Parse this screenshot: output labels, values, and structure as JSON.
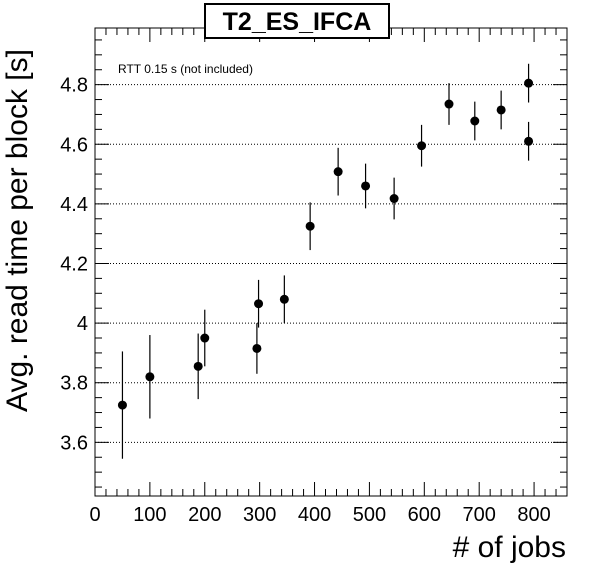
{
  "chart_data": {
    "type": "scatter",
    "title": "T2_ES_IFCA",
    "xlabel": "# of jobs",
    "ylabel": "Avg. read time per block [s]",
    "annotation": "RTT 0.15 s (not included)",
    "xlim": [
      0,
      860
    ],
    "ylim": [
      3.42,
      4.99
    ],
    "xticks": [
      0,
      100,
      200,
      300,
      400,
      500,
      600,
      700,
      800
    ],
    "xtick_labels": [
      "0",
      "100",
      "200",
      "300",
      "400",
      "500",
      "600",
      "700",
      "800"
    ],
    "yticks": [
      3.6,
      3.8,
      4.0,
      4.2,
      4.4,
      4.6,
      4.8
    ],
    "ytick_labels": [
      "3.6",
      "3.8",
      "4",
      "4.2",
      "4.4",
      "4.6",
      "4.8"
    ],
    "y_grid": true,
    "series": [
      {
        "x": [
          50,
          100,
          188,
          200,
          295,
          298,
          345,
          392,
          443,
          493,
          545,
          595,
          645,
          692,
          740,
          790,
          790
        ],
        "y": [
          3.725,
          3.82,
          3.855,
          3.95,
          3.915,
          4.065,
          4.08,
          4.325,
          4.508,
          4.46,
          4.418,
          4.595,
          4.735,
          4.678,
          4.715,
          4.805,
          4.61
        ],
        "yerr": [
          0.18,
          0.14,
          0.11,
          0.095,
          0.085,
          0.08,
          0.08,
          0.08,
          0.08,
          0.075,
          0.07,
          0.07,
          0.07,
          0.065,
          0.065,
          0.065,
          0.065
        ]
      }
    ],
    "colors": {
      "marker": "#000000",
      "grid": "#000000",
      "frame": "#000000"
    }
  }
}
